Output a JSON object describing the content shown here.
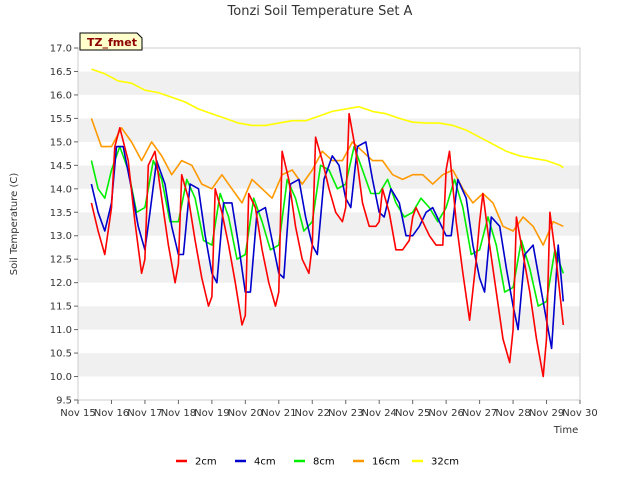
{
  "chart_data": {
    "type": "line",
    "title": "Tonzi Soil Temperature Set A",
    "xlabel": "Time",
    "ylabel": "Soil Temperature (C)",
    "site_label": "TZ_fmet",
    "ylim": [
      9.5,
      17.0
    ],
    "xlim": [
      15,
      30
    ],
    "y_ticks": [
      "9.5",
      "10.0",
      "10.5",
      "11.0",
      "11.5",
      "12.0",
      "12.5",
      "13.0",
      "13.5",
      "14.0",
      "14.5",
      "15.0",
      "15.5",
      "16.0",
      "16.5",
      "17.0"
    ],
    "x_ticks": [
      "Nov 15",
      "Nov 16",
      "Nov 17",
      "Nov 18",
      "Nov 19",
      "Nov 20",
      "Nov 21",
      "Nov 22",
      "Nov 23",
      "Nov 24",
      "Nov 25",
      "Nov 26",
      "Nov 27",
      "Nov 28",
      "Nov 29",
      "Nov 30"
    ],
    "grid": true,
    "legend_position": "bottom",
    "series": [
      {
        "name": "2cm",
        "color": "#ff0000",
        "x": [
          15.4,
          15.6,
          15.8,
          16.0,
          16.1,
          16.25,
          16.5,
          16.7,
          16.9,
          17.0,
          17.1,
          17.3,
          17.5,
          17.7,
          17.9,
          18.0,
          18.1,
          18.3,
          18.5,
          18.7,
          18.9,
          19.0,
          19.1,
          19.3,
          19.5,
          19.7,
          19.9,
          20.0,
          20.1,
          20.3,
          20.5,
          20.7,
          20.9,
          21.0,
          21.1,
          21.3,
          21.5,
          21.7,
          21.9,
          22.0,
          22.1,
          22.3,
          22.5,
          22.7,
          22.9,
          23.0,
          23.1,
          23.3,
          23.5,
          23.7,
          23.9,
          24.0,
          24.1,
          24.3,
          24.5,
          24.7,
          24.9,
          25.0,
          25.1,
          25.3,
          25.5,
          25.7,
          25.9,
          26.0,
          26.1,
          26.3,
          26.5,
          26.7,
          26.9,
          27.0,
          27.1,
          27.3,
          27.5,
          27.7,
          27.9,
          28.0,
          28.1,
          28.3,
          28.5,
          28.7,
          28.9,
          29.0,
          29.1,
          29.3,
          29.5
        ],
        "y": [
          13.7,
          13.1,
          12.6,
          13.6,
          14.9,
          15.3,
          14.6,
          13.3,
          12.2,
          12.5,
          14.5,
          14.8,
          13.8,
          12.8,
          12.0,
          12.4,
          14.3,
          13.8,
          12.9,
          12.1,
          11.5,
          11.7,
          14.0,
          13.5,
          12.8,
          12.0,
          11.1,
          11.3,
          13.9,
          13.6,
          12.7,
          12.0,
          11.5,
          11.8,
          14.8,
          14.2,
          13.2,
          12.5,
          12.2,
          12.8,
          15.1,
          14.6,
          14.0,
          13.5,
          13.3,
          13.6,
          15.6,
          14.8,
          13.7,
          13.2,
          13.2,
          13.3,
          14.0,
          13.5,
          12.7,
          12.7,
          12.9,
          13.4,
          13.6,
          13.3,
          13.0,
          12.8,
          12.8,
          14.4,
          14.8,
          13.3,
          12.2,
          11.2,
          12.5,
          13.3,
          13.9,
          12.8,
          11.8,
          10.8,
          10.3,
          11.0,
          13.4,
          12.6,
          11.8,
          10.8,
          10.0,
          10.8,
          13.5,
          12.4,
          11.1
        ]
      },
      {
        "name": "4cm",
        "color": "#0000cc",
        "x": [
          15.4,
          15.6,
          15.8,
          16.0,
          16.15,
          16.35,
          16.6,
          16.8,
          17.0,
          17.15,
          17.35,
          17.6,
          17.8,
          18.0,
          18.15,
          18.35,
          18.6,
          18.8,
          19.0,
          19.15,
          19.35,
          19.6,
          19.8,
          20.0,
          20.15,
          20.35,
          20.6,
          20.8,
          21.0,
          21.15,
          21.35,
          21.6,
          21.8,
          22.0,
          22.15,
          22.35,
          22.6,
          22.8,
          23.0,
          23.15,
          23.35,
          23.6,
          23.8,
          24.0,
          24.15,
          24.35,
          24.6,
          24.8,
          25.0,
          25.2,
          25.4,
          25.6,
          25.8,
          26.0,
          26.15,
          26.35,
          26.6,
          26.8,
          27.0,
          27.15,
          27.35,
          27.6,
          27.8,
          28.0,
          28.15,
          28.35,
          28.6,
          28.8,
          29.0,
          29.15,
          29.35,
          29.5
        ],
        "y": [
          14.1,
          13.5,
          13.1,
          13.7,
          14.9,
          14.9,
          14.0,
          13.2,
          12.7,
          13.5,
          14.6,
          14.1,
          13.2,
          12.6,
          12.6,
          14.1,
          14.0,
          13.0,
          12.2,
          12.0,
          13.7,
          13.7,
          12.8,
          11.8,
          11.8,
          13.5,
          13.6,
          12.9,
          12.2,
          12.1,
          14.1,
          14.2,
          13.4,
          12.8,
          12.6,
          14.2,
          14.7,
          14.5,
          13.8,
          13.6,
          14.9,
          15.0,
          14.2,
          13.5,
          13.4,
          14.0,
          13.7,
          13.0,
          13.0,
          13.2,
          13.5,
          13.6,
          13.3,
          13.0,
          13.0,
          14.2,
          13.8,
          12.8,
          12.1,
          11.8,
          13.4,
          13.2,
          12.3,
          11.5,
          11.0,
          12.6,
          12.8,
          12.0,
          11.2,
          10.6,
          12.8,
          11.6
        ]
      },
      {
        "name": "8cm",
        "color": "#00ee00",
        "x": [
          15.4,
          15.6,
          15.8,
          16.0,
          16.25,
          16.5,
          16.75,
          17.0,
          17.25,
          17.5,
          17.75,
          18.0,
          18.25,
          18.5,
          18.75,
          19.0,
          19.25,
          19.5,
          19.75,
          20.0,
          20.25,
          20.5,
          20.75,
          21.0,
          21.25,
          21.5,
          21.75,
          22.0,
          22.25,
          22.5,
          22.75,
          23.0,
          23.25,
          23.5,
          23.75,
          24.0,
          24.25,
          24.5,
          24.75,
          25.0,
          25.25,
          25.5,
          25.75,
          26.0,
          26.25,
          26.5,
          26.75,
          27.0,
          27.25,
          27.5,
          27.75,
          28.0,
          28.25,
          28.5,
          28.75,
          29.0,
          29.25,
          29.5
        ],
        "y": [
          14.6,
          14.0,
          13.8,
          14.4,
          14.9,
          14.4,
          13.5,
          13.6,
          14.6,
          14.2,
          13.3,
          13.3,
          14.2,
          13.8,
          12.9,
          12.8,
          13.9,
          13.4,
          12.5,
          12.6,
          13.8,
          13.3,
          12.7,
          12.8,
          14.2,
          13.8,
          13.1,
          13.3,
          14.5,
          14.4,
          14.0,
          14.1,
          14.9,
          14.4,
          13.9,
          13.9,
          14.2,
          13.7,
          13.4,
          13.5,
          13.8,
          13.6,
          13.3,
          13.6,
          14.2,
          13.6,
          12.6,
          12.7,
          13.4,
          12.8,
          11.8,
          11.9,
          12.9,
          12.3,
          11.5,
          11.6,
          12.7,
          12.2
        ]
      },
      {
        "name": "16cm",
        "color": "#ff9900",
        "x": [
          15.4,
          15.7,
          16.0,
          16.3,
          16.6,
          16.9,
          17.2,
          17.5,
          17.8,
          18.1,
          18.4,
          18.7,
          19.0,
          19.3,
          19.6,
          19.9,
          20.2,
          20.5,
          20.8,
          21.1,
          21.4,
          21.7,
          22.0,
          22.3,
          22.6,
          22.9,
          23.2,
          23.5,
          23.8,
          24.1,
          24.4,
          24.7,
          25.0,
          25.3,
          25.6,
          25.9,
          26.2,
          26.5,
          26.8,
          27.1,
          27.4,
          27.7,
          28.0,
          28.3,
          28.6,
          28.9,
          29.2,
          29.5
        ],
        "y": [
          15.5,
          14.9,
          14.9,
          15.3,
          15.0,
          14.6,
          15.0,
          14.7,
          14.3,
          14.6,
          14.5,
          14.1,
          14.0,
          14.3,
          14.0,
          13.7,
          14.2,
          14.0,
          13.8,
          14.3,
          14.4,
          14.1,
          14.4,
          14.8,
          14.6,
          14.6,
          15.0,
          14.8,
          14.6,
          14.6,
          14.3,
          14.2,
          14.3,
          14.3,
          14.1,
          14.3,
          14.4,
          14.0,
          13.7,
          13.9,
          13.7,
          13.2,
          13.1,
          13.4,
          13.2,
          12.8,
          13.3,
          13.2
        ]
      },
      {
        "name": "32cm",
        "color": "#ffff00",
        "x": [
          15.4,
          15.8,
          16.2,
          16.6,
          17.0,
          17.4,
          17.8,
          18.2,
          18.6,
          19.0,
          19.4,
          19.8,
          20.2,
          20.6,
          21.0,
          21.4,
          21.8,
          22.2,
          22.6,
          23.0,
          23.4,
          23.8,
          24.2,
          24.6,
          25.0,
          25.4,
          25.8,
          26.2,
          26.6,
          27.0,
          27.4,
          27.8,
          28.2,
          28.6,
          29.0,
          29.4,
          29.5
        ],
        "y": [
          16.55,
          16.45,
          16.3,
          16.25,
          16.1,
          16.05,
          15.95,
          15.85,
          15.7,
          15.6,
          15.5,
          15.4,
          15.35,
          15.35,
          15.4,
          15.45,
          15.45,
          15.55,
          15.65,
          15.7,
          15.75,
          15.65,
          15.6,
          15.5,
          15.42,
          15.4,
          15.4,
          15.35,
          15.25,
          15.1,
          14.95,
          14.8,
          14.7,
          14.65,
          14.6,
          14.5,
          14.45
        ]
      }
    ]
  }
}
